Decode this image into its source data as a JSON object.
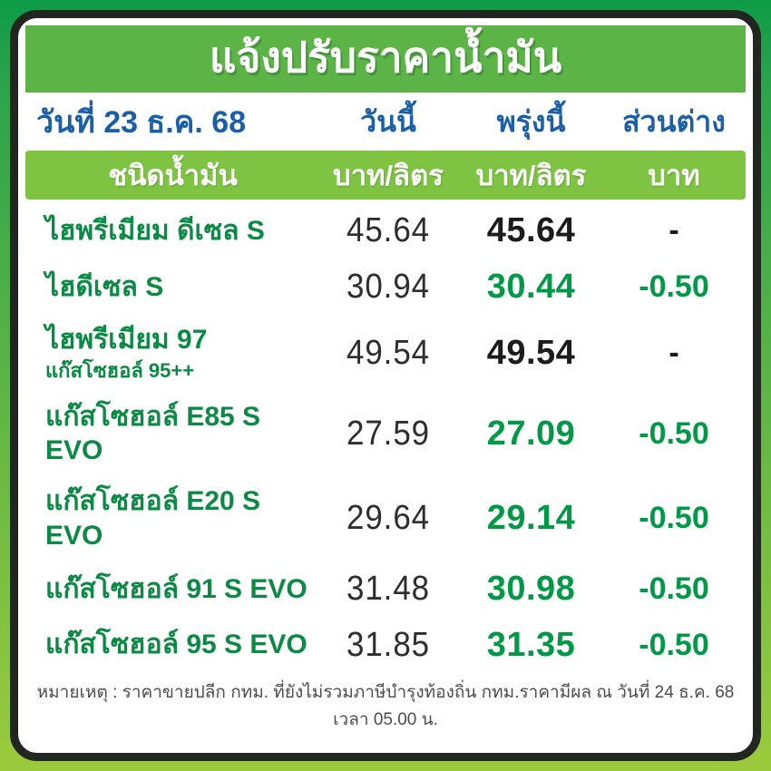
{
  "title": "แจ้งปรับราคาน้ำมัน",
  "header": {
    "date_label": "วันที่ 23 ธ.ค. 68",
    "today": "วันนี้",
    "tomorrow": "พรุ่งนี้",
    "difference": "ส่วนต่าง"
  },
  "subheader": {
    "fuel_type": "ชนิดน้ำมัน",
    "unit_today": "บาท/ลิตร",
    "unit_tomorrow": "บาท/ลิตร",
    "unit_difference": "บาท"
  },
  "rows": [
    {
      "name": "ไฮพรีเมียม ดีเซล S",
      "subname": "",
      "today": "45.64",
      "tomorrow": "45.64",
      "diff": "-",
      "changed": false
    },
    {
      "name": "ไฮดีเซล S",
      "subname": "",
      "today": "30.94",
      "tomorrow": "30.44",
      "diff": "-0.50",
      "changed": true
    },
    {
      "name": "ไฮพรีเมียม 97",
      "subname": "แก๊สโซฮอล์ 95++",
      "today": "49.54",
      "tomorrow": "49.54",
      "diff": "-",
      "changed": false
    },
    {
      "name": "แก๊สโซฮอล์ E85 S EVO",
      "subname": "",
      "today": "27.59",
      "tomorrow": "27.09",
      "diff": "-0.50",
      "changed": true
    },
    {
      "name": "แก๊สโซฮอล์ E20 S EVO",
      "subname": "",
      "today": "29.64",
      "tomorrow": "29.14",
      "diff": "-0.50",
      "changed": true
    },
    {
      "name": "แก๊สโซฮอล์ 91 S EVO",
      "subname": "",
      "today": "31.48",
      "tomorrow": "30.98",
      "diff": "-0.50",
      "changed": true
    },
    {
      "name": "แก๊สโซฮอล์ 95 S EVO",
      "subname": "",
      "today": "31.85",
      "tomorrow": "31.35",
      "diff": "-0.50",
      "changed": true
    }
  ],
  "footnote": "หมายเหตุ : ราคาขายปลีก กทม. ที่ยังไม่รวมภาษีบำรุงท้องถิ่น กทม.ราคามีผล ณ วันที่ 24 ธ.ค. 68 เวลา 05.00 น.",
  "colors": {
    "frame_top": "#0d9b46",
    "frame_mid": "#2aa34c",
    "frame_bottom": "#9bcb3c",
    "card_border": "#212621",
    "banner_green": "#5cb447",
    "subheader_green": "#7ec342",
    "header_blue": "#1b5fa9",
    "fuel_green": "#0b8a44",
    "value_green": "#009a47",
    "number_black": "#1c1c1c"
  }
}
